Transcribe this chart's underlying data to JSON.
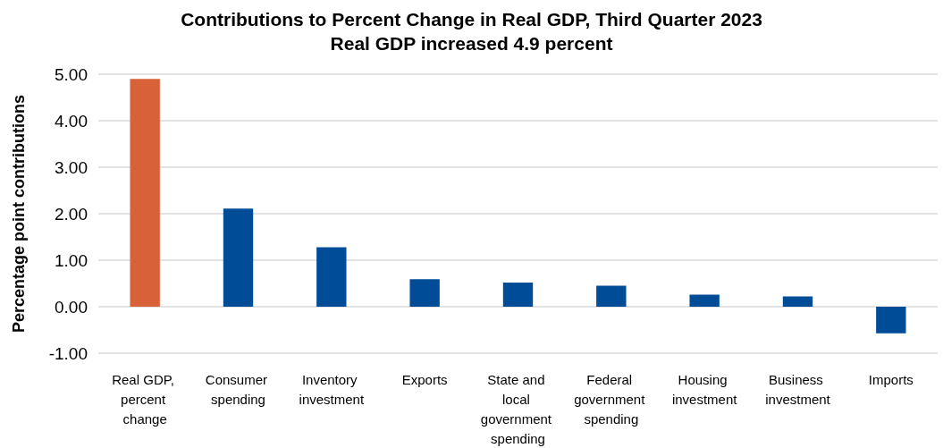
{
  "chart_data": {
    "type": "bar",
    "title": "Contributions to Percent Change in Real GDP, Third Quarter 2023",
    "subtitle": "Real GDP increased 4.9 percent",
    "ylabel": "Percentage point contributions",
    "categories": [
      "Real GDP, percent change",
      "Consumer spending",
      "Inventory investment",
      "Exports",
      "State and local government spending",
      "Federal government spending",
      "Housing investment",
      "Business investment",
      "Imports"
    ],
    "values": [
      4.9,
      2.11,
      1.28,
      0.59,
      0.52,
      0.45,
      0.26,
      0.22,
      -0.57
    ],
    "colors": [
      "#d9613a",
      "#004c97",
      "#004c97",
      "#004c97",
      "#004c97",
      "#004c97",
      "#004c97",
      "#004c97",
      "#004c97"
    ],
    "ylim": [
      -1,
      5
    ],
    "yticks": [
      {
        "value": -1,
        "label": "-1.00"
      },
      {
        "value": 0,
        "label": "0.00"
      },
      {
        "value": 1,
        "label": "1.00"
      },
      {
        "value": 2,
        "label": "2.00"
      },
      {
        "value": 3,
        "label": "3.00"
      },
      {
        "value": 4,
        "label": "4.00"
      },
      {
        "value": 5,
        "label": "5.00"
      }
    ],
    "grid": "y"
  }
}
